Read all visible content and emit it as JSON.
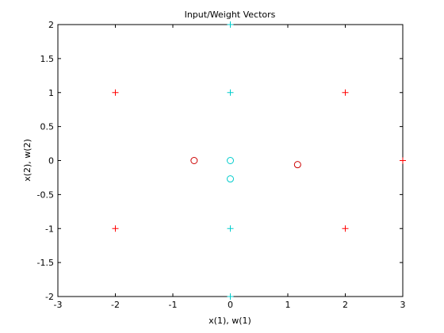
{
  "chart_data": {
    "type": "scatter",
    "title": "Input/Weight Vectors",
    "xlabel": "x(1), w(1)",
    "ylabel": "x(2), w(2)",
    "xlim": [
      -3,
      3
    ],
    "ylim": [
      -2,
      2
    ],
    "xticks": [
      "-3",
      "-2",
      "-1",
      "0",
      "1",
      "2",
      "3"
    ],
    "yticks": [
      "-2",
      "-1.5",
      "-1",
      "-0.5",
      "0",
      "0.5",
      "1",
      "1.5",
      "2"
    ],
    "grid": false,
    "series": [
      {
        "marker": "plus",
        "color": "#ff0000",
        "points": [
          [
            -2,
            1
          ],
          [
            2,
            1
          ],
          [
            -2,
            -1
          ],
          [
            2,
            -1
          ],
          [
            3,
            0
          ]
        ]
      },
      {
        "marker": "plus",
        "color": "#00cccc",
        "points": [
          [
            0,
            2
          ],
          [
            0,
            1
          ],
          [
            0,
            -1
          ],
          [
            0,
            -2
          ]
        ]
      },
      {
        "marker": "circle",
        "color": "#cc0000",
        "points": [
          [
            -0.63,
            0.0
          ],
          [
            1.17,
            -0.06
          ]
        ]
      },
      {
        "marker": "circle",
        "color": "#00cccc",
        "points": [
          [
            0,
            0.0
          ],
          [
            0,
            -0.27
          ]
        ]
      }
    ]
  }
}
